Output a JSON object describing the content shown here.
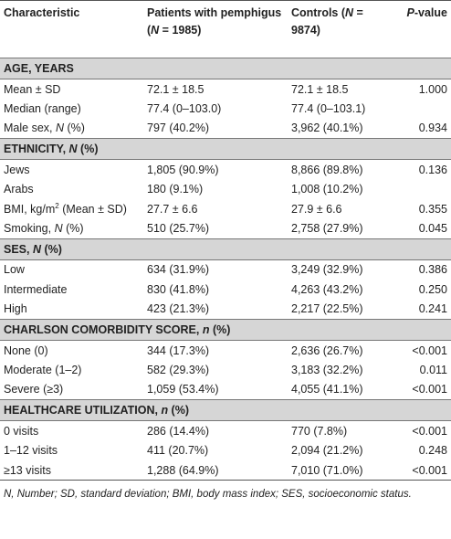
{
  "table": {
    "header": [
      "Characteristic",
      [
        "Patients with pemphigus (",
        {
          "italic": "N"
        },
        " = 1985)"
      ],
      [
        "Controls (",
        {
          "italic": "N"
        },
        " =  9874)"
      ],
      [
        {
          "italic": "P"
        },
        "-value"
      ]
    ],
    "sections": [
      {
        "title": "AGE, YEARS",
        "rows": [
          [
            "Mean ± SD",
            "72.1 ± 18.5",
            "72.1 ± 18.5",
            "1.000"
          ],
          [
            "Median (range)",
            "77.4 (0–103.0)",
            "77.4 (0–103.1)",
            null
          ],
          [
            [
              "Male sex, ",
              {
                "italic": "N"
              },
              " (%)"
            ],
            "797 (40.2%)",
            "3,962 (40.1%)",
            "0.934"
          ]
        ]
      },
      {
        "title": [
          "ETHNICITY, ",
          {
            "italic": "N"
          },
          " (%)"
        ],
        "rows": [
          [
            "Jews",
            "1,805 (90.9%)",
            "8,866 (89.8%)",
            "0.136"
          ],
          [
            "Arabs",
            "180 (9.1%)",
            "1,008 (10.2%)",
            null
          ],
          [
            [
              "BMI, kg/m",
              {
                "sup": "2"
              },
              " (Mean ± SD)"
            ],
            "27.7 ± 6.6",
            "27.9 ± 6.6",
            "0.355"
          ],
          [
            [
              "Smoking, ",
              {
                "italic": "N"
              },
              " (%)"
            ],
            "510 (25.7%)",
            "2,758 (27.9%)",
            "0.045"
          ]
        ]
      },
      {
        "title": [
          "SES, ",
          {
            "italic": "N"
          },
          " (%)"
        ],
        "rows": [
          [
            "Low",
            "634 (31.9%)",
            "3,249 (32.9%)",
            "0.386"
          ],
          [
            "Intermediate",
            "830 (41.8%)",
            "4,263 (43.2%)",
            "0.250"
          ],
          [
            "High",
            "423 (21.3%)",
            "2,217 (22.5%)",
            "0.241"
          ]
        ]
      },
      {
        "title": [
          "CHARLSON COMORBIDITY SCORE, ",
          {
            "italic": "n"
          },
          " (%)"
        ],
        "rows": [
          [
            "None (0)",
            "344 (17.3%)",
            "2,636 (26.7%)",
            "<0.001"
          ],
          [
            "Moderate (1–2)",
            "582 (29.3%)",
            "3,183 (32.2%)",
            "0.011"
          ],
          [
            "Severe (≥3)",
            "1,059 (53.4%)",
            "4,055 (41.1%)",
            "<0.001"
          ]
        ]
      },
      {
        "title": [
          "HEALTHCARE UTILIZATION, ",
          {
            "italic": "n"
          },
          " (%)"
        ],
        "rows": [
          [
            "0 visits",
            "286 (14.4%)",
            "770 (7.8%)",
            "<0.001"
          ],
          [
            "1–12 visits",
            "411 (20.7%)",
            "2,094 (21.2%)",
            "0.248"
          ],
          [
            "≥13 visits",
            "1,288 (64.9%)",
            "7,010 (71.0%)",
            "<0.001"
          ]
        ]
      }
    ]
  },
  "footnote": "N, Number; SD, standard deviation; BMI, body mass index; SES, socioeconomic status."
}
